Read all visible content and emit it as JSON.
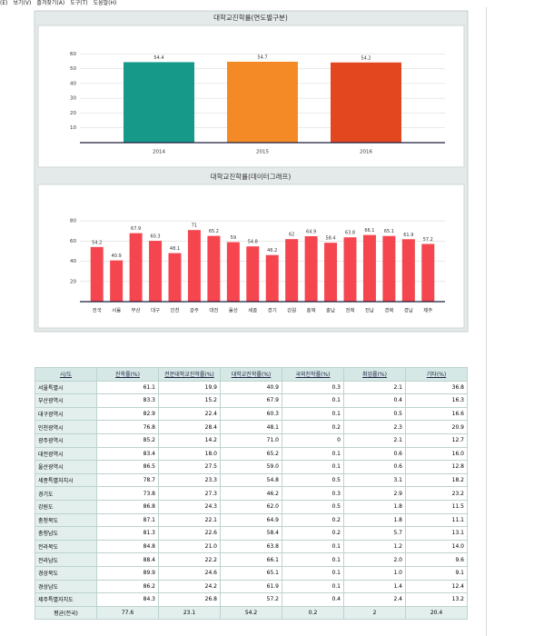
{
  "menu": [
    "(E)",
    "보기(V)",
    "즐겨찾기(A)",
    "도구(T)",
    "도움말(H)"
  ],
  "chart_data": [
    {
      "type": "bar",
      "title": "대학교진학률(연도별구분)",
      "categories": [
        "2014",
        "2015",
        "2016"
      ],
      "values": [
        54.4,
        54.7,
        54.2
      ],
      "colors": [
        "#17998a",
        "#f48a25",
        "#e3471f"
      ],
      "ylim": [
        0,
        78
      ],
      "yticks": [
        10,
        20,
        30,
        40,
        50,
        60
      ],
      "grid": true
    },
    {
      "type": "bar",
      "title": "대학교진학률(데이터그래프)",
      "categories": [
        "전국",
        "서울",
        "부산",
        "대구",
        "인천",
        "광주",
        "대전",
        "울산",
        "세종",
        "경기",
        "강원",
        "충북",
        "충남",
        "전북",
        "전남",
        "경북",
        "경남",
        "제주"
      ],
      "values": [
        54.2,
        40.9,
        67.9,
        60.3,
        48.1,
        71,
        65.2,
        59,
        54.8,
        46.2,
        62,
        64.9,
        58.4,
        63.8,
        66.1,
        65.1,
        61.9,
        57.2
      ],
      "color": "#f5464f",
      "ylim": [
        0,
        100
      ],
      "yticks": [
        20,
        40,
        60,
        80
      ],
      "grid": true
    }
  ],
  "table": {
    "header": [
      "시/도",
      "진학률(%)",
      "전문대학교진학률(%)",
      "대학교진학률(%)",
      "국외진학률(%)",
      "취업률(%)",
      "기타(%)"
    ],
    "rows": [
      [
        "서울특별시",
        "61.1",
        "19.9",
        "40.9",
        "0.3",
        "2.1",
        "36.8"
      ],
      [
        "부산광역시",
        "83.3",
        "15.2",
        "67.9",
        "0.1",
        "0.4",
        "16.3"
      ],
      [
        "대구광역시",
        "82.9",
        "22.4",
        "60.3",
        "0.1",
        "0.5",
        "16.6"
      ],
      [
        "인천광역시",
        "76.8",
        "28.4",
        "48.1",
        "0.2",
        "2.3",
        "20.9"
      ],
      [
        "광주광역시",
        "85.2",
        "14.2",
        "71.0",
        "0",
        "2.1",
        "12.7"
      ],
      [
        "대전광역시",
        "83.4",
        "18.0",
        "65.2",
        "0.1",
        "0.6",
        "16.0"
      ],
      [
        "울산광역시",
        "86.5",
        "27.5",
        "59.0",
        "0.1",
        "0.6",
        "12.8"
      ],
      [
        "세종특별자치시",
        "78.7",
        "23.3",
        "54.8",
        "0.5",
        "3.1",
        "18.2"
      ],
      [
        "경기도",
        "73.8",
        "27.3",
        "46.2",
        "0.3",
        "2.9",
        "23.2"
      ],
      [
        "강원도",
        "86.8",
        "24.3",
        "62.0",
        "0.5",
        "1.8",
        "11.5"
      ],
      [
        "충청북도",
        "87.1",
        "22.1",
        "64.9",
        "0.2",
        "1.8",
        "11.1"
      ],
      [
        "충청남도",
        "81.3",
        "22.6",
        "58.4",
        "0.2",
        "5.7",
        "13.1"
      ],
      [
        "전라북도",
        "84.8",
        "21.0",
        "63.8",
        "0.1",
        "1.2",
        "14.0"
      ],
      [
        "전라남도",
        "88.4",
        "22.2",
        "66.1",
        "0.1",
        "2.0",
        "9.6"
      ],
      [
        "경상북도",
        "89.9",
        "24.6",
        "65.1",
        "0.1",
        "1.0",
        "9.1"
      ],
      [
        "경상남도",
        "86.2",
        "24.2",
        "61.9",
        "0.1",
        "1.4",
        "12.4"
      ],
      [
        "제주특별자치도",
        "84.3",
        "26.8",
        "57.2",
        "0.4",
        "2.4",
        "13.2"
      ],
      [
        "평균(전국)",
        "77.6",
        "23.1",
        "54.2",
        "0.2",
        "2",
        "20.4"
      ]
    ]
  }
}
